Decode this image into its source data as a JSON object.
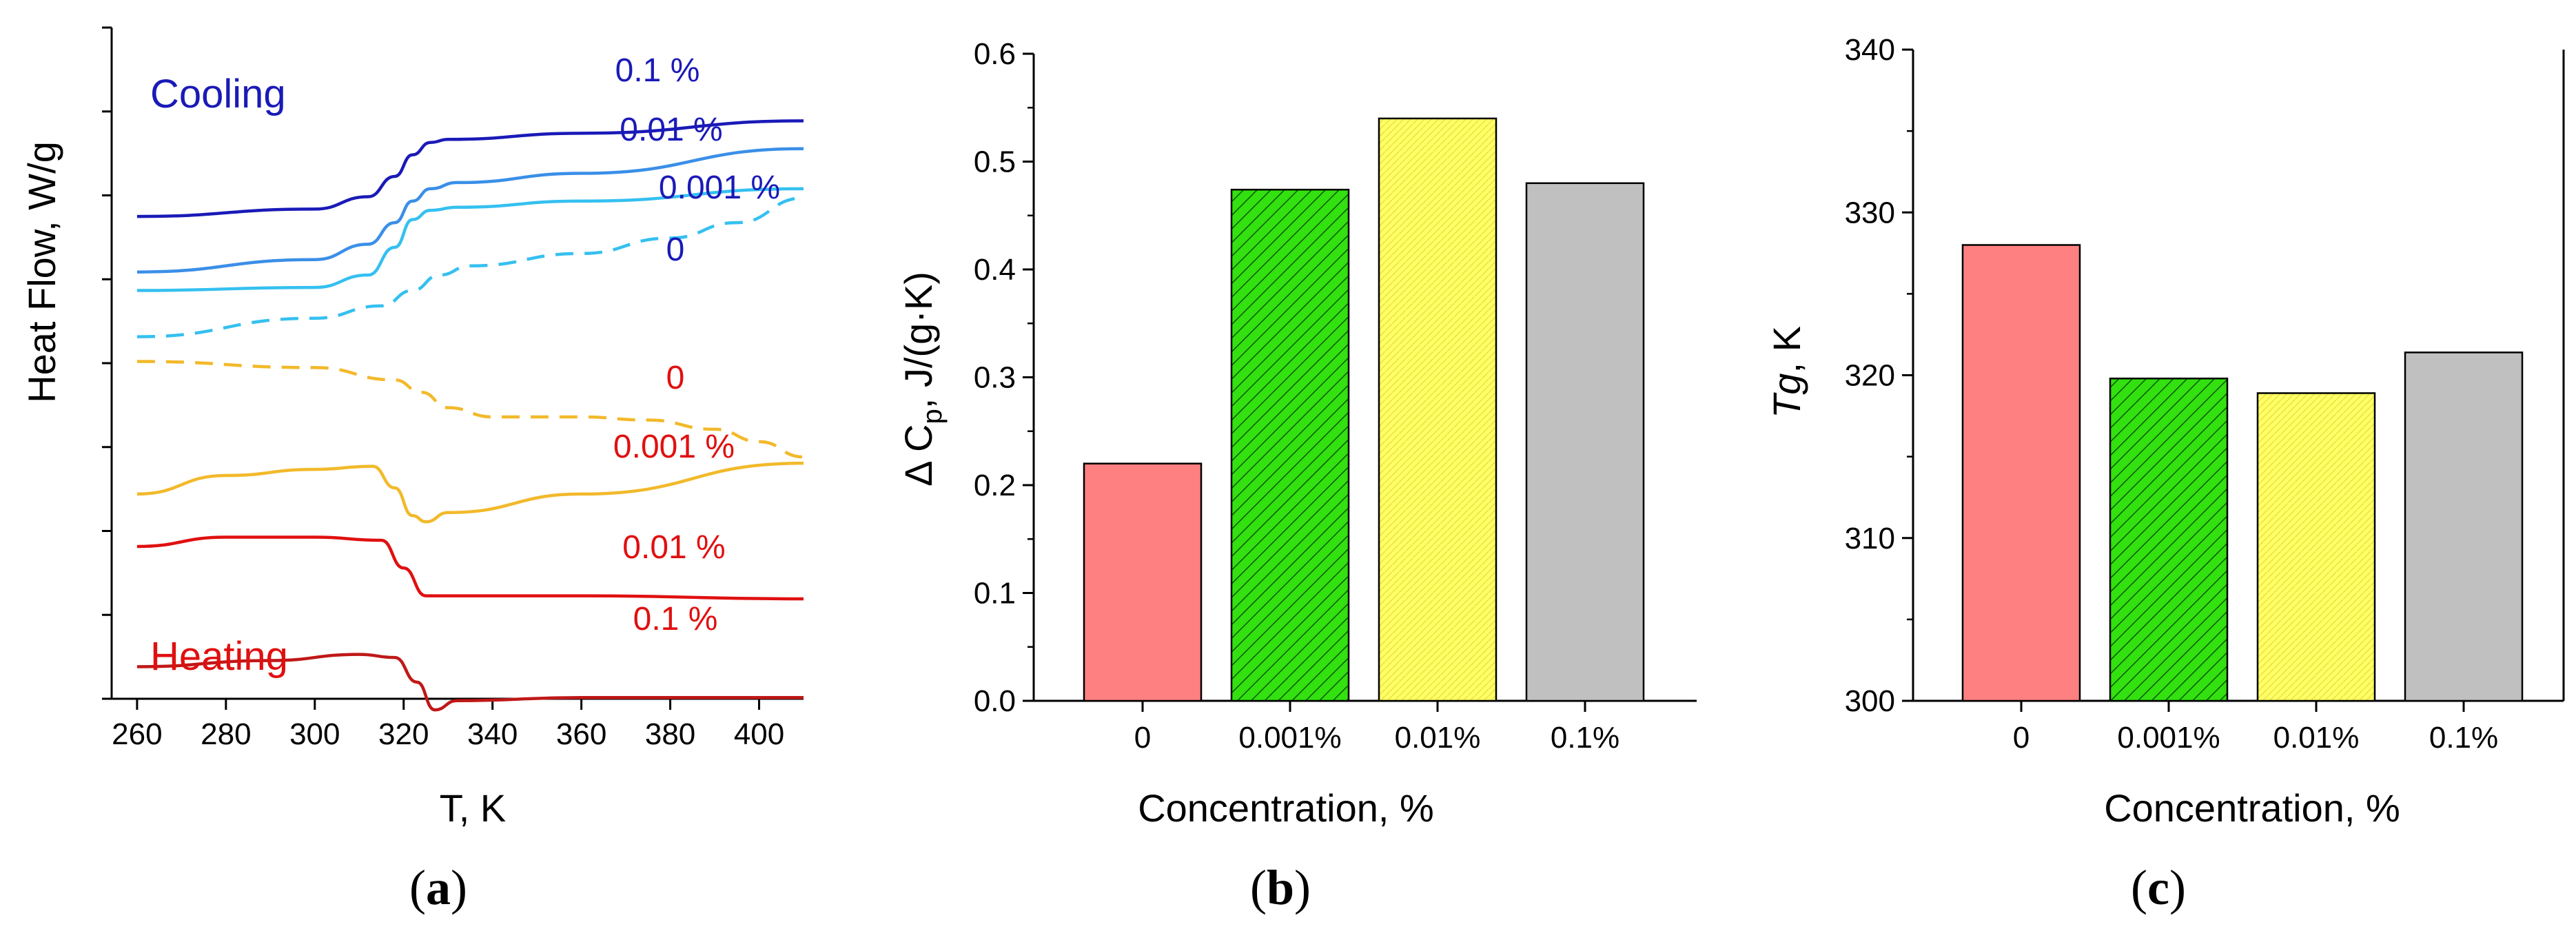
{
  "figure": {
    "panel_labels": [
      "a",
      "b",
      "c"
    ]
  },
  "chart_data": [
    {
      "panel": "a",
      "type": "line",
      "xlabel": "T, K",
      "ylabel": "Heat Flow, W/g",
      "xlim": [
        258,
        410
      ],
      "xticks": [
        260,
        280,
        300,
        320,
        340,
        360,
        380,
        400
      ],
      "y_tick_labels_shown": false,
      "annotations": {
        "cooling": "Cooling",
        "heating": "Heating"
      },
      "series": [
        {
          "name": "0.1 %",
          "group": "cooling",
          "dashed": false,
          "color": "#1a1ab8",
          "label_color": "#1a1ab8",
          "x": [
            260,
            300,
            312,
            318,
            322,
            326,
            330,
            360,
            410
          ],
          "y": [
            8.3,
            8.42,
            8.62,
            8.95,
            9.3,
            9.5,
            9.55,
            9.65,
            9.85
          ]
        },
        {
          "name": "0.01 %",
          "group": "cooling",
          "dashed": false,
          "color": "#3a8fe8",
          "label_color": "#1a1ab8",
          "x": [
            260,
            300,
            312,
            318,
            322,
            326,
            332,
            360,
            410
          ],
          "y": [
            7.4,
            7.6,
            7.85,
            8.2,
            8.55,
            8.75,
            8.85,
            9.0,
            9.4
          ]
        },
        {
          "name": "0.001 %",
          "group": "cooling",
          "dashed": false,
          "color": "#35c0f0",
          "label_color": "#1a1ab8",
          "x": [
            260,
            300,
            312,
            318,
            322,
            326,
            332,
            360,
            410
          ],
          "y": [
            7.1,
            7.15,
            7.35,
            7.8,
            8.25,
            8.4,
            8.45,
            8.55,
            8.75
          ]
        },
        {
          "name": "0",
          "group": "cooling",
          "dashed": true,
          "color": "#35c0f0",
          "label_color": "#1a1ab8",
          "x": [
            260,
            300,
            315,
            322,
            328,
            335,
            360,
            380,
            395,
            410
          ],
          "y": [
            6.35,
            6.65,
            6.85,
            7.1,
            7.35,
            7.5,
            7.7,
            7.95,
            8.2,
            8.6
          ]
        },
        {
          "name": "0",
          "group": "heating",
          "dashed": true,
          "color": "#f2b92a",
          "label_color": "#e01010",
          "x": [
            260,
            300,
            318,
            324,
            330,
            340,
            360,
            375,
            390,
            400,
            410
          ],
          "y": [
            5.95,
            5.85,
            5.65,
            5.45,
            5.2,
            5.05,
            5.05,
            5.0,
            4.85,
            4.65,
            4.4
          ]
        },
        {
          "name": "0.001 %",
          "group": "heating",
          "dashed": false,
          "color": "#f2b92a",
          "label_color": "#e01010",
          "x": [
            260,
            280,
            300,
            313,
            318,
            322,
            325,
            330,
            360,
            410
          ],
          "y": [
            3.8,
            4.1,
            4.2,
            4.25,
            3.9,
            3.45,
            3.35,
            3.5,
            3.8,
            4.3
          ]
        },
        {
          "name": "0.01 %",
          "group": "heating",
          "dashed": false,
          "color": "#e01010",
          "label_color": "#e01010",
          "x": [
            260,
            280,
            300,
            315,
            320,
            325,
            330,
            360,
            410
          ],
          "y": [
            2.95,
            3.1,
            3.1,
            3.05,
            2.6,
            2.15,
            2.15,
            2.15,
            2.1
          ]
        },
        {
          "name": "0.1 %",
          "group": "heating",
          "dashed": false,
          "color": "#c01818",
          "label_color": "#e01010",
          "x": [
            260,
            290,
            310,
            318,
            323,
            327,
            332,
            360,
            410
          ],
          "y": [
            1.0,
            1.1,
            1.2,
            1.15,
            0.75,
            0.3,
            0.45,
            0.5,
            0.5
          ]
        }
      ]
    },
    {
      "panel": "b",
      "type": "bar",
      "xlabel": "Concentration, %",
      "ylabel_parts": [
        "Δ C",
        "p",
        ", J/(g·K)"
      ],
      "ylim": [
        0,
        0.6
      ],
      "yticks": [
        "0.0",
        "0.1",
        "0.2",
        "0.3",
        "0.4",
        "0.5",
        "0.6"
      ],
      "categories": [
        "0",
        "0.001%",
        "0.01%",
        "0.1%"
      ],
      "values": [
        0.22,
        0.474,
        0.54,
        0.48
      ],
      "colors": [
        "#ff8080",
        "#33e010",
        "#ffff66",
        "#c0c0c0"
      ],
      "patterns": [
        "solid",
        "hatch",
        "dots",
        "solid"
      ]
    },
    {
      "panel": "c",
      "type": "bar",
      "xlabel": "Concentration, %",
      "ylabel_parts": [
        "Tg",
        ", K"
      ],
      "ylim": [
        300,
        340
      ],
      "yticks": [
        "300",
        "310",
        "320",
        "330",
        "340"
      ],
      "categories": [
        "0",
        "0.001%",
        "0.01%",
        "0.1%"
      ],
      "values": [
        328,
        319.8,
        318.9,
        321.4
      ],
      "colors": [
        "#ff8080",
        "#33e010",
        "#ffff66",
        "#c0c0c0"
      ],
      "patterns": [
        "solid",
        "hatch",
        "dots",
        "solid"
      ]
    }
  ]
}
